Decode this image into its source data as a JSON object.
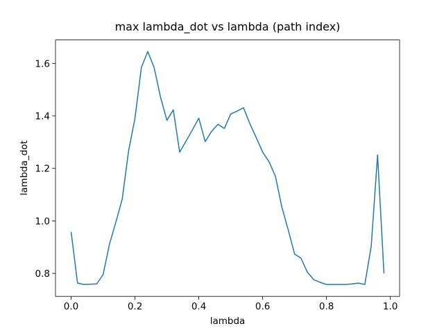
{
  "chart_data": {
    "type": "line",
    "title": "max lambda_dot vs lambda (path index)",
    "x_label": "lambda",
    "y_label": "lambda_dot",
    "x": [
      0,
      0.02,
      0.04,
      0.06,
      0.08,
      0.1,
      0.12,
      0.14,
      0.16,
      0.18,
      0.2,
      0.22,
      0.24,
      0.26,
      0.28,
      0.3,
      0.32,
      0.34,
      0.36,
      0.38,
      0.4,
      0.42,
      0.44,
      0.46,
      0.48,
      0.5,
      0.52,
      0.54,
      0.56,
      0.58,
      0.6,
      0.62,
      0.64,
      0.66,
      0.68,
      0.7,
      0.72,
      0.74,
      0.76,
      0.78,
      0.8,
      0.82,
      0.84,
      0.86,
      0.88,
      0.9,
      0.92,
      0.94,
      0.96,
      0.98
    ],
    "series": [
      {
        "color": "#1f77b4",
        "values": [
          0.958,
          0.763,
          0.758,
          0.759,
          0.76,
          0.795,
          0.911,
          0.995,
          1.083,
          1.267,
          1.391,
          1.584,
          1.645,
          1.584,
          1.471,
          1.383,
          1.423,
          1.262,
          1.304,
          1.347,
          1.391,
          1.302,
          1.341,
          1.368,
          1.352,
          1.407,
          1.418,
          1.431,
          1.37,
          1.317,
          1.262,
          1.225,
          1.17,
          1.053,
          0.966,
          0.874,
          0.858,
          0.805,
          0.776,
          0.766,
          0.758,
          0.758,
          0.758,
          0.758,
          0.76,
          0.763,
          0.758,
          0.903,
          1.251,
          0.8
        ]
      }
    ],
    "xlim": [
      -0.049,
      1.029
    ],
    "ylim": [
      0.7126,
      1.689
    ],
    "xticks": [
      {
        "value": 0,
        "label": "0.0"
      },
      0.2,
      0.4,
      0.6,
      0.8,
      {
        "value": 1,
        "label": "1.0"
      }
    ],
    "yticks": [
      0.8,
      {
        "value": 1,
        "label": "1.0"
      },
      1.2,
      1.4,
      1.6
    ],
    "grid": false
  }
}
